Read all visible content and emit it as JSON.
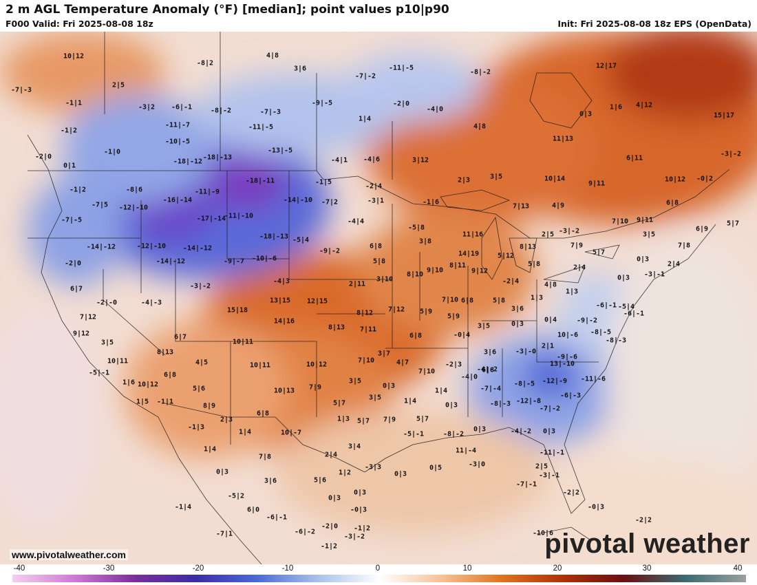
{
  "header": {
    "title": "2 m AGL Temperature Anomaly (°F) [median]; point values p10|p90",
    "valid": "F000 Valid: Fri 2025-08-08 18z",
    "init": "Init: Fri 2025-08-08 18z EPS (OpenData)"
  },
  "footer": {
    "website": "www.pivotalweather.com",
    "brand": "pivotal weather"
  },
  "colorbar": {
    "ticks": [
      "-40",
      "-30",
      "-20",
      "-10",
      "0",
      "10",
      "20",
      "30",
      "40"
    ],
    "stops": [
      "#f4d0f0",
      "#d07ad8",
      "#7a2e9a",
      "#3d2ba8",
      "#4a6ad8",
      "#a9c2ea",
      "#ffffff",
      "#f7c39a",
      "#e0741e",
      "#b03008",
      "#6a1010",
      "#3b6a70",
      "#9aa0a0"
    ]
  },
  "point_values": [
    {
      "t": "10|12"
    },
    {
      "t": "-8|2"
    },
    {
      "t": "4|8"
    },
    {
      "t": "3|6"
    },
    {
      "t": "-11|-5"
    },
    {
      "t": "-8|-2"
    },
    {
      "t": "-7|-2"
    },
    {
      "t": "12|17"
    },
    {
      "t": "2|5"
    },
    {
      "t": "-7|-3"
    },
    {
      "t": "-1|1"
    },
    {
      "t": "-3|2"
    },
    {
      "t": "-6|-1"
    },
    {
      "t": "-8|-2"
    },
    {
      "t": "-7|-3"
    },
    {
      "t": "-9|-5"
    },
    {
      "t": "-2|0"
    },
    {
      "t": "-4|0"
    },
    {
      "t": "0|3"
    },
    {
      "t": "1|6"
    },
    {
      "t": "4|12"
    },
    {
      "t": "15|17"
    },
    {
      "t": "-1|2"
    },
    {
      "t": "-11|-7"
    },
    {
      "t": "-11|-5"
    },
    {
      "t": "1|4"
    },
    {
      "t": "4|8"
    },
    {
      "t": "11|13"
    },
    {
      "t": "-10|-5"
    },
    {
      "t": "-1|0"
    },
    {
      "t": "-2|0"
    },
    {
      "t": "-18|-12"
    },
    {
      "t": "-18|-13"
    },
    {
      "t": "-13|-5"
    },
    {
      "t": "-4|1"
    },
    {
      "t": "-4|6"
    },
    {
      "t": "3|12"
    },
    {
      "t": "6|11"
    },
    {
      "t": "-3|-2"
    },
    {
      "t": "0|1"
    },
    {
      "t": "-18|-11"
    },
    {
      "t": "-1|5"
    },
    {
      "t": "-2|4"
    },
    {
      "t": "2|3"
    },
    {
      "t": "3|5"
    },
    {
      "t": "10|14"
    },
    {
      "t": "9|11"
    },
    {
      "t": "10|12"
    },
    {
      "t": "-0|2"
    },
    {
      "t": "-1|2"
    },
    {
      "t": "-8|6"
    },
    {
      "t": "-11|-9"
    },
    {
      "t": "-7|5"
    },
    {
      "t": "-12|-10"
    },
    {
      "t": "-16|-14"
    },
    {
      "t": "-14|-10"
    },
    {
      "t": "-7|2"
    },
    {
      "t": "-3|1"
    },
    {
      "t": "-1|6"
    },
    {
      "t": "7|13"
    },
    {
      "t": "4|9"
    },
    {
      "t": "6|8"
    },
    {
      "t": "-7|-5"
    },
    {
      "t": "-17|-14"
    },
    {
      "t": "-11|-10"
    },
    {
      "t": "-4|4"
    },
    {
      "t": "-5|8"
    },
    {
      "t": "7|10"
    },
    {
      "t": "9|11"
    },
    {
      "t": "5|7"
    },
    {
      "t": "-3|-2"
    },
    {
      "t": "-14|-12"
    },
    {
      "t": "-12|-10"
    },
    {
      "t": "-14|-12"
    },
    {
      "t": "-18|-13"
    },
    {
      "t": "-5|4"
    },
    {
      "t": "11|16"
    },
    {
      "t": "2|5"
    },
    {
      "t": "6|9"
    },
    {
      "t": "3|5"
    },
    {
      "t": "3|8"
    },
    {
      "t": "6|8"
    },
    {
      "t": "-9|-2"
    },
    {
      "t": "-9|-7"
    },
    {
      "t": "-10|-6"
    },
    {
      "t": "14|19"
    },
    {
      "t": "5|12"
    },
    {
      "t": "8|13"
    },
    {
      "t": "7|9"
    },
    {
      "t": "5|7"
    },
    {
      "t": "7|8"
    },
    {
      "t": "-2|0"
    },
    {
      "t": "-14|-12"
    },
    {
      "t": "5|8"
    },
    {
      "t": "8|11"
    },
    {
      "t": "5|8"
    },
    {
      "t": "2|4"
    },
    {
      "t": "0|3"
    },
    {
      "t": "2|4"
    },
    {
      "t": "6|7"
    },
    {
      "t": "-4|3"
    },
    {
      "t": "-3|-2"
    },
    {
      "t": "2|11"
    },
    {
      "t": "3|10"
    },
    {
      "t": "8|10"
    },
    {
      "t": "9|10"
    },
    {
      "t": "9|12"
    },
    {
      "t": "-2|4"
    },
    {
      "t": "4|8"
    },
    {
      "t": "0|3"
    },
    {
      "t": "-3|-1"
    },
    {
      "t": "-2|-0"
    },
    {
      "t": "-4|-3"
    },
    {
      "t": "13|15"
    },
    {
      "t": "12|15"
    },
    {
      "t": "7|10"
    },
    {
      "t": "6|8"
    },
    {
      "t": "5|8"
    },
    {
      "t": "1|3"
    },
    {
      "t": "1|3"
    },
    {
      "t": "-6|-1"
    },
    {
      "t": "-5|4"
    },
    {
      "t": "7|12"
    },
    {
      "t": "15|18"
    },
    {
      "t": "7|12"
    },
    {
      "t": "8|12"
    },
    {
      "t": "5|9"
    },
    {
      "t": "5|9"
    },
    {
      "t": "3|6"
    },
    {
      "t": "-6|-1"
    },
    {
      "t": "14|16"
    },
    {
      "t": "8|13"
    },
    {
      "t": "7|11"
    },
    {
      "t": "3|5"
    },
    {
      "t": "0|3"
    },
    {
      "t": "0|4"
    },
    {
      "t": "-9|-2"
    },
    {
      "t": "9|12"
    },
    {
      "t": "-8|-5"
    },
    {
      "t": "3|5"
    },
    {
      "t": "6|7"
    },
    {
      "t": "10|11"
    },
    {
      "t": "6|8"
    },
    {
      "t": "-0|4"
    },
    {
      "t": "10|-6"
    },
    {
      "t": "-8|-3"
    },
    {
      "t": "8|13"
    },
    {
      "t": "3|7"
    },
    {
      "t": "3|6"
    },
    {
      "t": "-3|-0"
    },
    {
      "t": "2|1"
    },
    {
      "t": "-9|-6"
    },
    {
      "t": "10|11"
    },
    {
      "t": "4|5"
    },
    {
      "t": "10|11"
    },
    {
      "t": "10|12"
    },
    {
      "t": "7|10"
    },
    {
      "t": "4|7"
    },
    {
      "t": "-2|3"
    },
    {
      "t": "13|-10"
    },
    {
      "t": "-5|-1"
    },
    {
      "t": "6|8"
    },
    {
      "t": "7|10"
    },
    {
      "t": "6|8"
    },
    {
      "t": "-4|-2"
    },
    {
      "t": "1|6"
    },
    {
      "t": "10|12"
    },
    {
      "t": "3|5"
    },
    {
      "t": "-4|0"
    },
    {
      "t": "-8|-5"
    },
    {
      "t": "-12|-9"
    },
    {
      "t": "-11|-6"
    },
    {
      "t": "5|6"
    },
    {
      "t": "10|13"
    },
    {
      "t": "7|9"
    },
    {
      "t": "0|3"
    },
    {
      "t": "1|4"
    },
    {
      "t": "-7|-4"
    },
    {
      "t": "-6|-3"
    },
    {
      "t": "1|5"
    },
    {
      "t": "-1|1"
    },
    {
      "t": "8|9"
    },
    {
      "t": "5|7"
    },
    {
      "t": "3|5"
    },
    {
      "t": "1|4"
    },
    {
      "t": "0|3"
    },
    {
      "t": "-8|-3"
    },
    {
      "t": "-12|-8"
    },
    {
      "t": "-7|-2"
    },
    {
      "t": "2|3"
    },
    {
      "t": "6|8"
    },
    {
      "t": "1|3"
    },
    {
      "t": "-1|3"
    },
    {
      "t": "1|4"
    },
    {
      "t": "10|-7"
    },
    {
      "t": "5|7"
    },
    {
      "t": "7|9"
    },
    {
      "t": "5|7"
    },
    {
      "t": "-8|-2"
    },
    {
      "t": "0|3"
    },
    {
      "t": "-4|-2"
    },
    {
      "t": "0|3"
    },
    {
      "t": "-5|-1"
    },
    {
      "t": "11|-4"
    },
    {
      "t": "1|4"
    },
    {
      "t": "2|4"
    },
    {
      "t": "3|4"
    },
    {
      "t": "-11|-1"
    },
    {
      "t": "7|8"
    },
    {
      "t": "0|3"
    },
    {
      "t": "1|2"
    },
    {
      "t": "-3|3"
    },
    {
      "t": "0|3"
    },
    {
      "t": "0|5"
    },
    {
      "t": "-3|0"
    },
    {
      "t": "2|5"
    },
    {
      "t": "3|6"
    },
    {
      "t": "5|6"
    },
    {
      "t": "-3|-1"
    },
    {
      "t": "-5|2"
    },
    {
      "t": "0|3"
    },
    {
      "t": "0|3"
    },
    {
      "t": "-7|-1"
    },
    {
      "t": "-2|2"
    },
    {
      "t": "-1|4"
    },
    {
      "t": "6|0"
    },
    {
      "t": "-0|3"
    },
    {
      "t": "-2|2"
    },
    {
      "t": "-6|-1"
    },
    {
      "t": "-2|0"
    },
    {
      "t": "-1|2"
    },
    {
      "t": "-6|-2"
    },
    {
      "t": "-0|3"
    },
    {
      "t": "-7|1"
    },
    {
      "t": "-3|-2"
    },
    {
      "t": "-1|2"
    },
    {
      "t": "-10|6"
    }
  ]
}
